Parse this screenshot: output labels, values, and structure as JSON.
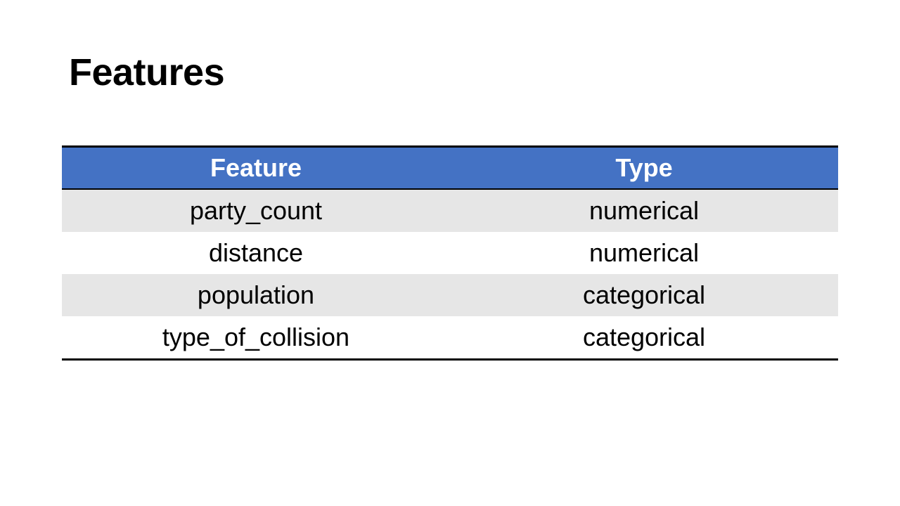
{
  "slide": {
    "title": "Features"
  },
  "table": {
    "headers": [
      "Feature",
      "Type"
    ],
    "rows": [
      [
        "party_count",
        "numerical"
      ],
      [
        "distance",
        "numerical"
      ],
      [
        "population",
        "categorical"
      ],
      [
        "type_of_collision",
        "categorical"
      ]
    ],
    "header_color": "#4472c4",
    "stripe_color": "#e6e6e6"
  }
}
